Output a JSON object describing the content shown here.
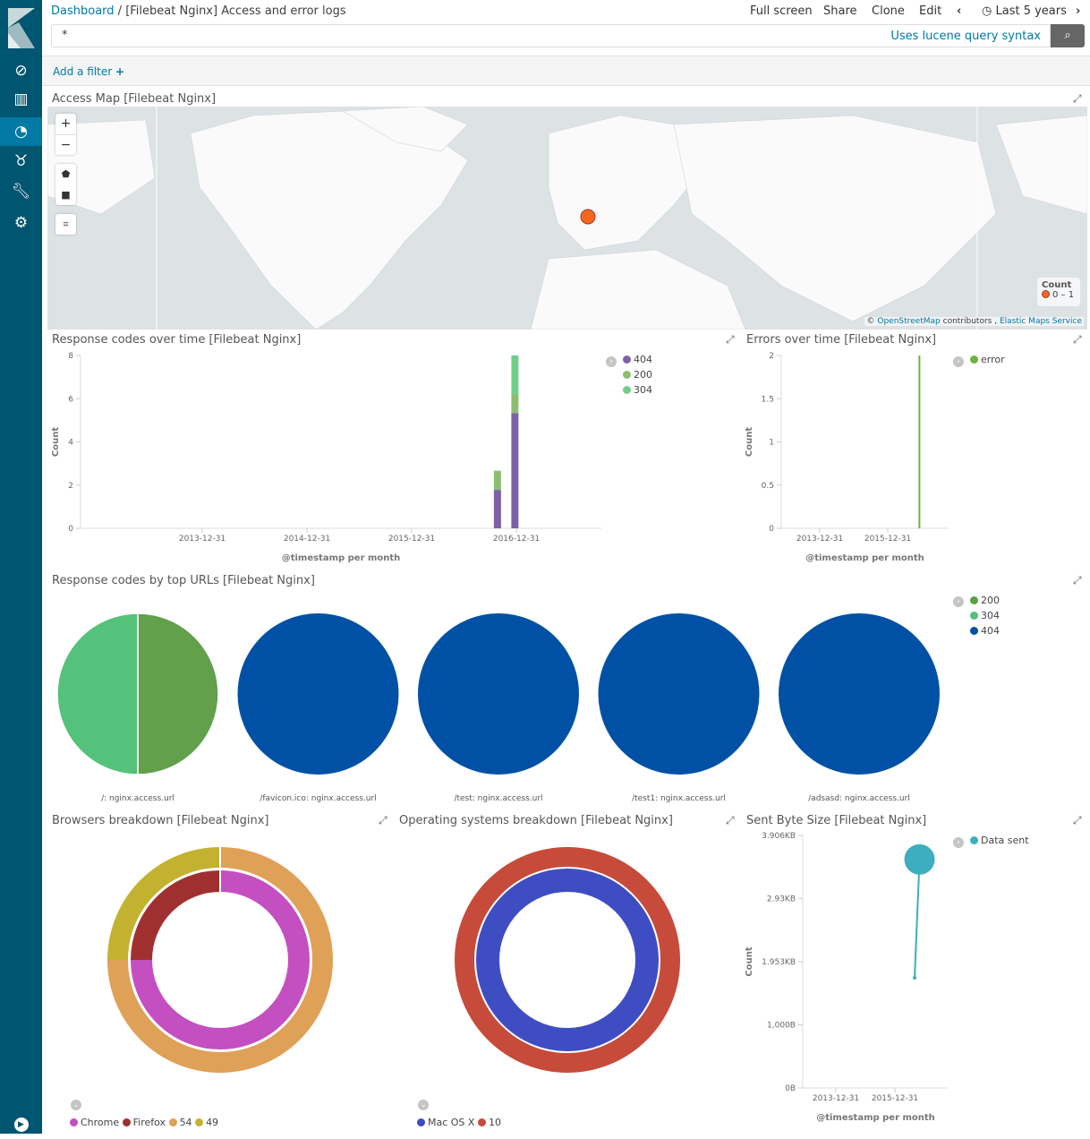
{
  "breadcrumb": {
    "root": "Dashboard",
    "separator": "/",
    "current": "[Filebeat Nginx] Access and error logs"
  },
  "top_menu": {
    "full_screen": "Full screen",
    "share": "Share",
    "clone": "Clone",
    "edit": "Edit",
    "time_range": "Last 5 years"
  },
  "query": {
    "value": "*",
    "syntax_hint": "Uses lucene query syntax"
  },
  "filter": {
    "add_label": "Add a filter",
    "add_icon": "+"
  },
  "colors": {
    "sidebar": "#005571",
    "sidebar_active": "#0079a5",
    "link": "#0079a5"
  },
  "map": {
    "title": "Access Map [Filebeat Nginx]",
    "legend_title": "Count",
    "legend_range": "0 – 1",
    "attribution_prefix": "©",
    "attribution_osm": "OpenStreetMap",
    "attribution_mid": "contributors ,",
    "attribution_ems": "Elastic Maps Service",
    "zoom_in": "+",
    "zoom_out": "−",
    "point_color": "#f5671f"
  },
  "chart_data": [
    {
      "type": "bar",
      "title": "Response codes over time [Filebeat Nginx]",
      "xlabel": "@timestamp per month",
      "ylabel": "Count",
      "ylim": [
        0,
        9
      ],
      "yticks": [
        "0",
        "2",
        "4",
        "6",
        "8"
      ],
      "xticks": [
        "2013-12-31",
        "2014-12-31",
        "2015-12-31",
        "2016-12-31"
      ],
      "stacked": true,
      "legend": "top-right",
      "categories": [
        "2016-10",
        "2016-12"
      ],
      "series": [
        {
          "name": "404",
          "color": "#7b62a8",
          "values": [
            2,
            6
          ]
        },
        {
          "name": "200",
          "color": "#8bbf6f",
          "values": [
            1,
            1
          ]
        },
        {
          "name": "304",
          "color": "#6fcf8a",
          "values": [
            0,
            2
          ]
        }
      ]
    },
    {
      "type": "line",
      "title": "Errors over time [Filebeat Nginx]",
      "xlabel": "@timestamp per month",
      "ylabel": "Count",
      "ylim": [
        0,
        2
      ],
      "yticks": [
        "0",
        "0.5",
        "1",
        "1.5",
        "2"
      ],
      "xticks": [
        "2013-12-31",
        "2015-12-31"
      ],
      "legend": "top-right",
      "series": [
        {
          "name": "error",
          "color": "#6cb33f",
          "points": [
            {
              "x": "2016-09",
              "y": 0
            },
            {
              "x": "2016-09",
              "y": 2
            }
          ]
        }
      ]
    },
    {
      "type": "pie",
      "title": "Response codes by top URLs [Filebeat Nginx]",
      "legend": "top-right",
      "legend_items": [
        {
          "name": "200",
          "color": "#57a241"
        },
        {
          "name": "304",
          "color": "#54c07a"
        },
        {
          "name": "404",
          "color": "#0051a5"
        }
      ],
      "pies": [
        {
          "label": "/: nginx.access.url",
          "slices": [
            {
              "name": "200",
              "value": 1,
              "color": "#62a04b"
            },
            {
              "name": "304",
              "value": 1,
              "color": "#54c27a"
            }
          ]
        },
        {
          "label": "/favicon.ico: nginx.access.url",
          "slices": [
            {
              "name": "404",
              "value": 1,
              "color": "#0051a5"
            }
          ]
        },
        {
          "label": "/test: nginx.access.url",
          "slices": [
            {
              "name": "404",
              "value": 1,
              "color": "#0051a5"
            }
          ]
        },
        {
          "label": "/test1: nginx.access.url",
          "slices": [
            {
              "name": "404",
              "value": 1,
              "color": "#0051a5"
            }
          ]
        },
        {
          "label": "/adsasd: nginx.access.url",
          "slices": [
            {
              "name": "404",
              "value": 1,
              "color": "#0051a5"
            }
          ]
        }
      ]
    },
    {
      "type": "pie",
      "title": "Browsers breakdown [Filebeat Nginx]",
      "donut": true,
      "legend": "bottom",
      "legend_items": [
        {
          "name": "Chrome",
          "color": "#c44fc0"
        },
        {
          "name": "Firefox",
          "color": "#a0302f"
        },
        {
          "name": "54",
          "color": "#dfa057"
        },
        {
          "name": "49",
          "color": "#c2b230"
        }
      ],
      "rings": [
        {
          "slices": [
            {
              "name": "Chrome",
              "value": 3,
              "color": "#c44fc0"
            },
            {
              "name": "Firefox",
              "value": 1,
              "color": "#a0302f"
            }
          ]
        },
        {
          "slices": [
            {
              "name": "54",
              "value": 3,
              "color": "#dfa057"
            },
            {
              "name": "49",
              "value": 1,
              "color": "#c2b230"
            }
          ]
        }
      ]
    },
    {
      "type": "pie",
      "title": "Operating systems breakdown [Filebeat Nginx]",
      "donut": true,
      "legend": "bottom",
      "legend_items": [
        {
          "name": "Mac OS X",
          "color": "#3f4dc2"
        },
        {
          "name": "10",
          "color": "#c74b3a"
        }
      ],
      "rings": [
        {
          "slices": [
            {
              "name": "Mac OS X",
              "value": 1,
              "color": "#3f4dc2"
            }
          ]
        },
        {
          "slices": [
            {
              "name": "10",
              "value": 1,
              "color": "#c74b3a"
            }
          ]
        }
      ]
    },
    {
      "type": "line",
      "title": "Sent Byte Size [Filebeat Nginx]",
      "xlabel": "@timestamp per month",
      "ylabel": "Count",
      "ylim": [
        0,
        4000
      ],
      "yticks": [
        "0B",
        "1,000B",
        "1.953KB",
        "2.93KB",
        "3.906KB"
      ],
      "xticks": [
        "2013-12-31",
        "2015-12-31"
      ],
      "legend": "top-right",
      "series": [
        {
          "name": "Data sent",
          "color": "#3caebf",
          "points": [
            {
              "x": "2016-09",
              "y": 1745,
              "size": "small"
            },
            {
              "x": "2016-11",
              "y": 3620,
              "size": "large"
            }
          ]
        }
      ]
    }
  ]
}
